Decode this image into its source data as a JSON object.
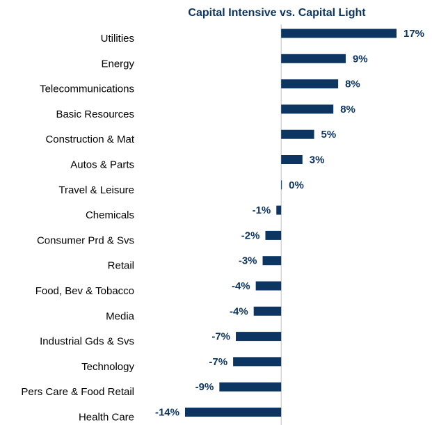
{
  "chart_data": {
    "type": "bar",
    "orientation": "horizontal",
    "title": "Capital Intensive vs. Capital Light",
    "categories": [
      "Utilities",
      "Energy",
      "Telecommunications",
      "Basic Resources",
      "Construction & Mat",
      "Autos & Parts",
      "Travel & Leisure",
      "Chemicals",
      "Consumer Prd & Svs",
      "Retail",
      "Food, Bev & Tobacco",
      "Media",
      "Industrial Gds & Svs",
      "Technology",
      "Pers Care & Food Retail",
      "Health Care"
    ],
    "values": [
      16.8,
      9.4,
      8.3,
      7.6,
      4.8,
      3.1,
      0.1,
      -0.7,
      -2.3,
      -2.7,
      -3.7,
      -4.0,
      -6.6,
      -7.0,
      -9.0,
      -14.0
    ],
    "value_labels": [
      "17%",
      "9%",
      "8%",
      "8%",
      "5%",
      "3%",
      "0%",
      "-1%",
      "-2%",
      "-3%",
      "-4%",
      "-4%",
      "-7%",
      "-7%",
      "-9%",
      "-14%"
    ],
    "color": "#0d3561"
  }
}
